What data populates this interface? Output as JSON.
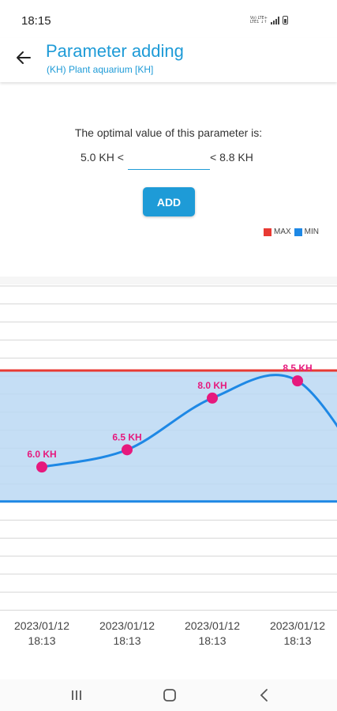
{
  "status": {
    "time": "18:15",
    "network_line1": "Vo) LTE+",
    "network_line2": "LTE1 ↓↑"
  },
  "header": {
    "title": "Parameter adding",
    "subtitle": "(KH) Plant aquarium [KH]"
  },
  "form": {
    "optimal_text": "The optimal value of this parameter is:",
    "min_label": "5.0 KH <",
    "max_label": "< 8.8 KH",
    "value": "",
    "add_label": "ADD"
  },
  "legend": {
    "max_label": "MAX",
    "min_label": "MIN",
    "max_color": "#e83a33",
    "min_color": "#1e88e5"
  },
  "chart_data": {
    "type": "line",
    "x": [
      "2023/01/12 18:13",
      "2023/01/12 18:13",
      "2023/01/12 18:13",
      "2023/01/12 18:13"
    ],
    "series": [
      {
        "values": [
          6.0,
          6.5,
          8.0,
          8.5
        ]
      }
    ],
    "point_labels": [
      "6.0 KH",
      "6.5 KH",
      "8.0 KH",
      "8.5 KH"
    ],
    "max_value": 8.8,
    "min_value": 5.0,
    "ylim": [
      1.9,
      11.3
    ],
    "line_color": "#1e88e5",
    "point_color": "#e6197d",
    "band_fill": "#bbd8f3",
    "grid": true
  }
}
